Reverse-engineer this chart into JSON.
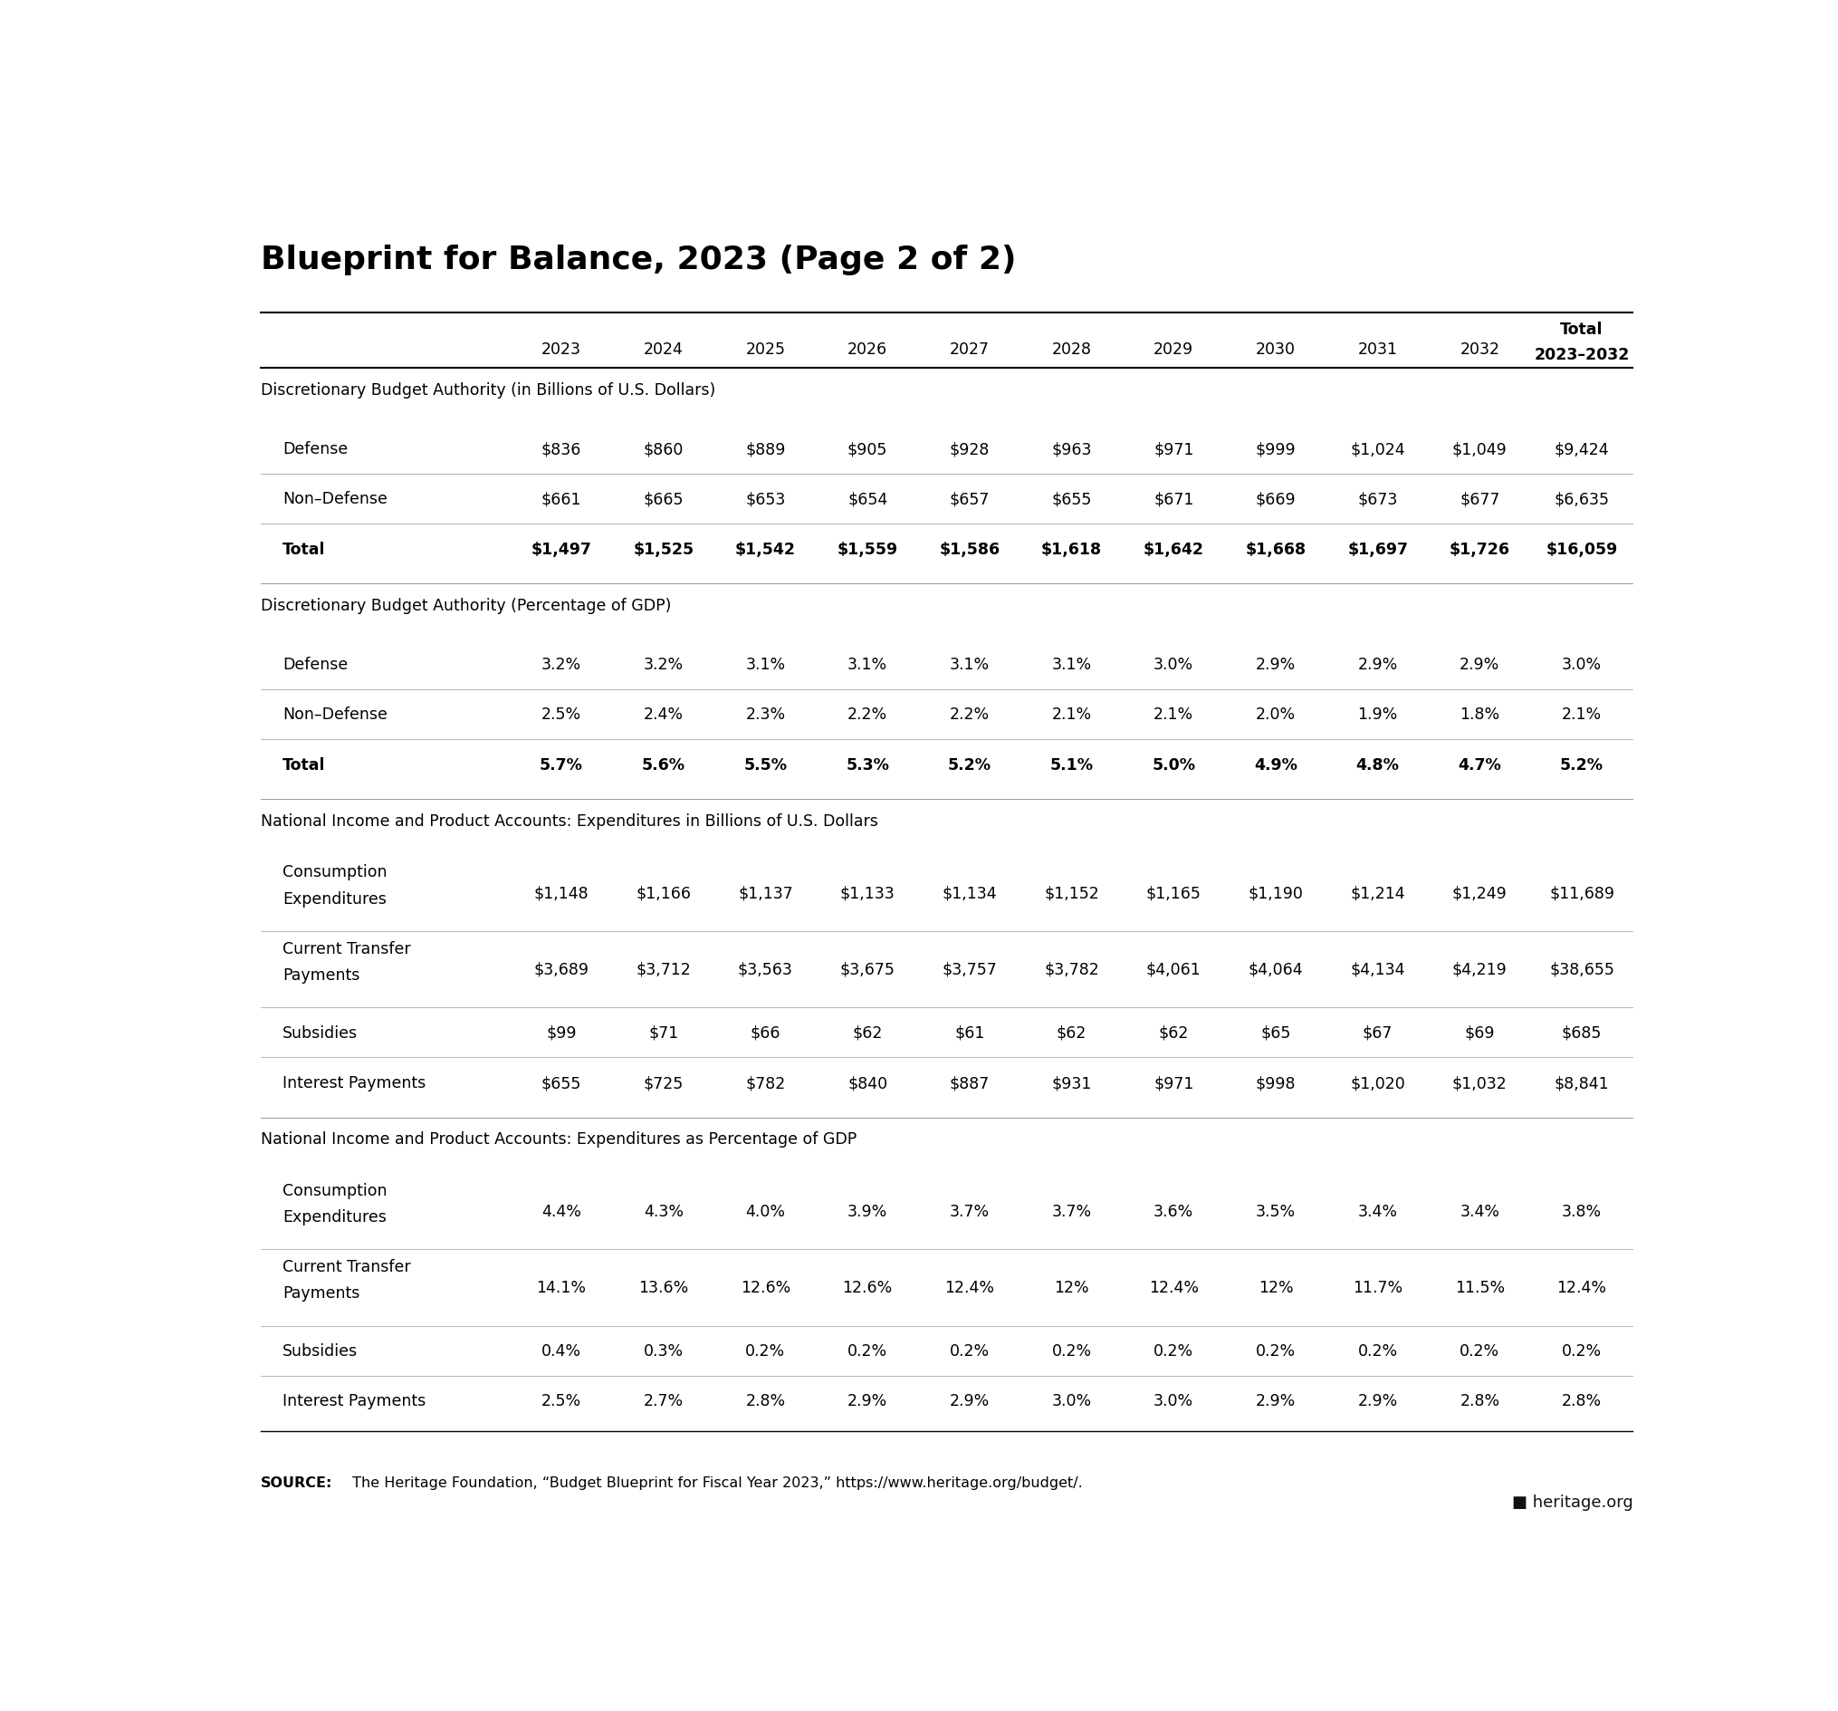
{
  "title": "Blueprint for Balance, 2023 (Page 2 of 2)",
  "sections": [
    {
      "header": "Discretionary Budget Authority (in Billions of U.S. Dollars)",
      "rows": [
        [
          "Defense",
          "$836",
          "$860",
          "$889",
          "$905",
          "$928",
          "$963",
          "$971",
          "$999",
          "$1,024",
          "$1,049",
          "$9,424"
        ],
        [
          "Non–Defense",
          "$661",
          "$665",
          "$653",
          "$654",
          "$657",
          "$655",
          "$671",
          "$669",
          "$673",
          "$677",
          "$6,635"
        ],
        [
          "Total",
          "$1,497",
          "$1,525",
          "$1,542",
          "$1,559",
          "$1,586",
          "$1,618",
          "$1,642",
          "$1,668",
          "$1,697",
          "$1,726",
          "$16,059"
        ]
      ],
      "bold_rows": [
        2
      ]
    },
    {
      "header": "Discretionary Budget Authority (Percentage of GDP)",
      "rows": [
        [
          "Defense",
          "3.2%",
          "3.2%",
          "3.1%",
          "3.1%",
          "3.1%",
          "3.1%",
          "3.0%",
          "2.9%",
          "2.9%",
          "2.9%",
          "3.0%"
        ],
        [
          "Non–Defense",
          "2.5%",
          "2.4%",
          "2.3%",
          "2.2%",
          "2.2%",
          "2.1%",
          "2.1%",
          "2.0%",
          "1.9%",
          "1.8%",
          "2.1%"
        ],
        [
          "Total",
          "5.7%",
          "5.6%",
          "5.5%",
          "5.3%",
          "5.2%",
          "5.1%",
          "5.0%",
          "4.9%",
          "4.8%",
          "4.7%",
          "5.2%"
        ]
      ],
      "bold_rows": [
        2
      ]
    },
    {
      "header": "National Income and Product Accounts: Expenditures in Billions of U.S. Dollars",
      "rows": [
        [
          "Consumption\nExpenditures",
          "$1,148",
          "$1,166",
          "$1,137",
          "$1,133",
          "$1,134",
          "$1,152",
          "$1,165",
          "$1,190",
          "$1,214",
          "$1,249",
          "$11,689"
        ],
        [
          "Current Transfer\nPayments",
          "$3,689",
          "$3,712",
          "$3,563",
          "$3,675",
          "$3,757",
          "$3,782",
          "$4,061",
          "$4,064",
          "$4,134",
          "$4,219",
          "$38,655"
        ],
        [
          "Subsidies",
          "$99",
          "$71",
          "$66",
          "$62",
          "$61",
          "$62",
          "$62",
          "$65",
          "$67",
          "$69",
          "$685"
        ],
        [
          "Interest Payments",
          "$655",
          "$725",
          "$782",
          "$840",
          "$887",
          "$931",
          "$971",
          "$998",
          "$1,020",
          "$1,032",
          "$8,841"
        ]
      ],
      "bold_rows": []
    },
    {
      "header": "National Income and Product Accounts: Expenditures as Percentage of GDP",
      "rows": [
        [
          "Consumption\nExpenditures",
          "4.4%",
          "4.3%",
          "4.0%",
          "3.9%",
          "3.7%",
          "3.7%",
          "3.6%",
          "3.5%",
          "3.4%",
          "3.4%",
          "3.8%"
        ],
        [
          "Current Transfer\nPayments",
          "14.1%",
          "13.6%",
          "12.6%",
          "12.6%",
          "12.4%",
          "12%",
          "12.4%",
          "12%",
          "11.7%",
          "11.5%",
          "12.4%"
        ],
        [
          "Subsidies",
          "0.4%",
          "0.3%",
          "0.2%",
          "0.2%",
          "0.2%",
          "0.2%",
          "0.2%",
          "0.2%",
          "0.2%",
          "0.2%",
          "0.2%"
        ],
        [
          "Interest Payments",
          "2.5%",
          "2.7%",
          "2.8%",
          "2.9%",
          "2.9%",
          "3.0%",
          "3.0%",
          "2.9%",
          "2.9%",
          "2.8%",
          "2.8%"
        ]
      ],
      "bold_rows": []
    }
  ],
  "years": [
    "2023",
    "2024",
    "2025",
    "2026",
    "2027",
    "2028",
    "2029",
    "2030",
    "2031",
    "2032"
  ],
  "source_bold": "SOURCE:",
  "source_text": " The Heritage Foundation, “Budget Blueprint for Fiscal Year 2023,” https://www.heritage.org/budget/.",
  "heritage_logo_text": "■ heritage.org",
  "background_color": "#ffffff",
  "header_line_color": "#000000",
  "separator_line_color": "#bbbbbb",
  "title_font_size": 26,
  "section_header_font_size": 12.5,
  "cell_font_size": 12.5,
  "col_header_font_size": 12.5
}
